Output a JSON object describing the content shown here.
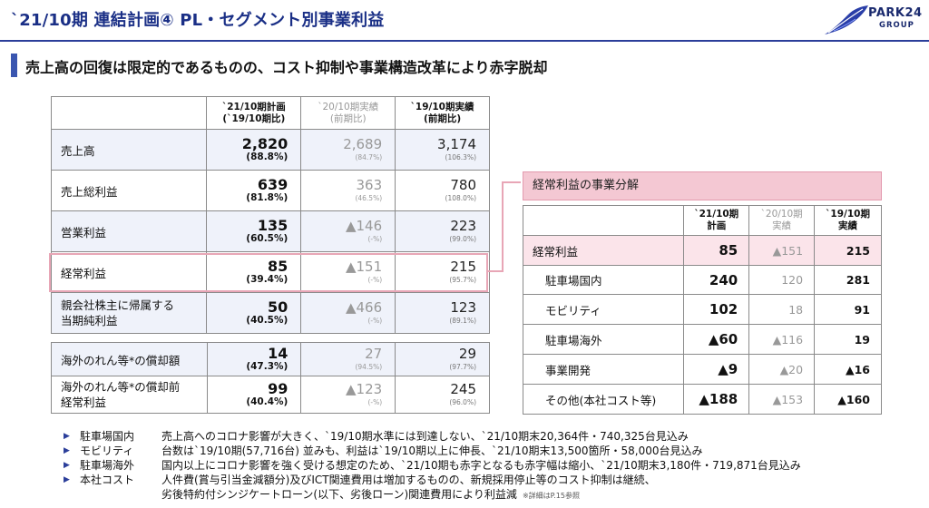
{
  "header": {
    "title": "`21/10期 連結計画④ PL・セグメント別事業利益",
    "logo_line1": "PARK24",
    "logo_line2": "GROUP"
  },
  "headline": "売上高の回復は限定的であるものの、コスト抑制や事業構造改革により赤字脱却",
  "main_table": {
    "headers": {
      "plan": "`21/10期計画",
      "plan_sub": "(`19/10期比)",
      "prev": "`20/10期実績",
      "prev_sub": "(前期比)",
      "ly": "`19/10期実績",
      "ly_sub": "(前期比)"
    },
    "rows": [
      {
        "label": "売上高",
        "plan": "2,820",
        "plan_pct": "(88.8%)",
        "prev": "2,689",
        "prev_pct": "(84.7%)",
        "ly": "3,174",
        "ly_pct": "(106.3%)"
      },
      {
        "label": "売上総利益",
        "plan": "639",
        "plan_pct": "(81.8%)",
        "prev": "363",
        "prev_pct": "(46.5%)",
        "ly": "780",
        "ly_pct": "(108.0%)"
      },
      {
        "label": "営業利益",
        "plan": "135",
        "plan_pct": "(60.5%)",
        "prev": "▲146",
        "prev_pct": "(-%)",
        "ly": "223",
        "ly_pct": "(99.0%)"
      },
      {
        "label": "経常利益",
        "plan": "85",
        "plan_pct": "(39.4%)",
        "prev": "▲151",
        "prev_pct": "(-%)",
        "ly": "215",
        "ly_pct": "(95.7%)"
      },
      {
        "label": "親会社株主に帰属する",
        "label2": "当期純利益",
        "plan": "50",
        "plan_pct": "(40.5%)",
        "prev": "▲466",
        "prev_pct": "(-%)",
        "ly": "123",
        "ly_pct": "(89.1%)"
      }
    ]
  },
  "sub_table": {
    "rows": [
      {
        "label": "海外のれん等*の償却額",
        "plan": "14",
        "plan_pct": "(47.3%)",
        "prev": "27",
        "prev_pct": "(94.5%)",
        "ly": "29",
        "ly_pct": "(97.7%)"
      },
      {
        "label": "海外のれん等*の償却前",
        "label2": "経常利益",
        "plan": "99",
        "plan_pct": "(40.4%)",
        "prev": "▲123",
        "prev_pct": "(-%)",
        "ly": "245",
        "ly_pct": "(96.0%)"
      }
    ]
  },
  "segment": {
    "title": "経常利益の事業分解",
    "headers": {
      "plan1": "`21/10期",
      "plan2": "計画",
      "prev1": "`20/10期",
      "prev2": "実績",
      "ly1": "`19/10期",
      "ly2": "実績"
    },
    "rows": [
      {
        "label": "経常利益",
        "plan": "85",
        "prev": "▲151",
        "ly": "215"
      },
      {
        "label": "駐車場国内",
        "plan": "240",
        "prev": "120",
        "ly": "281"
      },
      {
        "label": "モビリティ",
        "plan": "102",
        "prev": "18",
        "ly": "91"
      },
      {
        "label": "駐車場海外",
        "plan": "▲60",
        "prev": "▲116",
        "ly": "19"
      },
      {
        "label": "事業開発",
        "plan": "▲9",
        "prev": "▲20",
        "ly": "▲16"
      },
      {
        "label": "その他(本社コスト等)",
        "plan": "▲188",
        "prev": "▲153",
        "ly": "▲160"
      }
    ]
  },
  "notes": [
    {
      "key": "駐車場国内",
      "text": "売上高へのコロナ影響が大きく、`19/10期水準には到達しない、`21/10期末20,364件・740,325台見込み"
    },
    {
      "key": "モビリティ",
      "text": "台数は`19/10期(57,716台) 並みも、利益は`19/10期以上に伸長、`21/10期末13,500箇所・58,000台見込み"
    },
    {
      "key": "駐車場海外",
      "text": "国内以上にコロナ影響を強く受ける想定のため、`21/10期も赤字となるも赤字幅は縮小、`21/10期末3,180件・719,871台見込み"
    },
    {
      "key": "本社コスト",
      "text": "人件費(賞与引当金減額分)及びICT関連費用は増加するものの、新規採用停止等のコスト抑制は継続、"
    },
    {
      "key": "",
      "text": "劣後特約付シンジケートローン(以下、劣後ローン)関連費用により利益減",
      "small": "※詳細はP.15参照"
    }
  ]
}
